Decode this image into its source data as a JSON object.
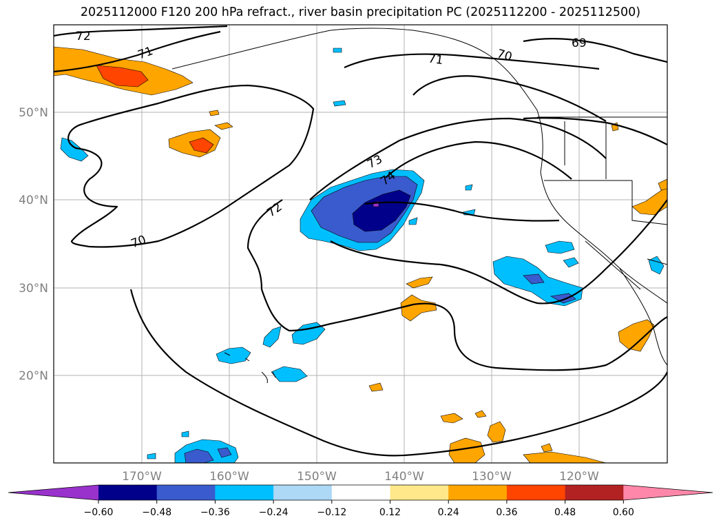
{
  "title": "2025112000 F120 200 hPa refract., river basin precipitation PC (2025112200 - 2025112500)",
  "map": {
    "region": "North Pacific / US West Coast",
    "lat_labels": [
      "50°N",
      "40°N",
      "30°N",
      "20°N"
    ],
    "lon_labels": [
      "170°W",
      "160°W",
      "150°W",
      "140°W",
      "130°W",
      "120°W"
    ],
    "contour_labels": [
      "72",
      "71",
      "71",
      "70",
      "69",
      "73",
      "74",
      "72",
      "70"
    ],
    "contour_color": "#000000",
    "grid_color": "#b0b0b0"
  },
  "colorbar": {
    "ticks": [
      "−0.60",
      "−0.48",
      "−0.36",
      "−0.24",
      "−0.12",
      "0.12",
      "0.24",
      "0.36",
      "0.48",
      "0.60"
    ],
    "colors": [
      "#9932cc",
      "#00008b",
      "#3a5bcd",
      "#00bfff",
      "#add8f6",
      "#ffffff",
      "#ffe88a",
      "#ffa500",
      "#ff4500",
      "#b22222",
      "#ff88aa"
    ]
  }
}
